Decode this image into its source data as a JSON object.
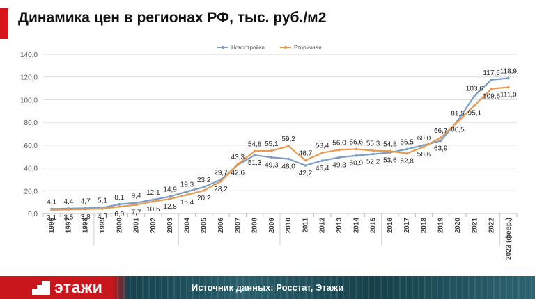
{
  "title": "Динамика цен в регионах РФ, тыс. руб./м2",
  "colors": {
    "accent": "#d7141a",
    "series_new": "#7b9ec9",
    "series_secondary": "#e89a52"
  },
  "chart_data": {
    "type": "line",
    "title": "",
    "xlabel": "",
    "ylabel": "",
    "ylim": [
      0,
      140
    ],
    "yticks": [
      "0,0",
      "20,0",
      "40,0",
      "60,0",
      "80,0",
      "100,0",
      "120,0",
      "140,0"
    ],
    "grid": true,
    "legend": "top-center",
    "categories": [
      "1996",
      "1997",
      "1998",
      "1999",
      "2000",
      "2001",
      "2002",
      "2003",
      "2004",
      "2005",
      "2006",
      "2007",
      "2008",
      "2009",
      "2010",
      "2011",
      "2012",
      "2013",
      "2014",
      "2015",
      "2016",
      "2017",
      "2018",
      "2019",
      "2020",
      "2021",
      "2022",
      "2023 (февр.)"
    ],
    "series": [
      {
        "name": "Новостройки",
        "color": "#7b9ec9",
        "values": [
          4.1,
          4.4,
          4.7,
          5.1,
          8.1,
          9.4,
          12.1,
          14.9,
          19.3,
          23.2,
          29.7,
          42.6,
          51.3,
          49.3,
          48.0,
          42.2,
          46.4,
          49.3,
          50.9,
          52.2,
          53.6,
          56.5,
          60.0,
          63.9,
          81.5,
          103.6,
          117.5,
          118.9
        ],
        "labels": [
          "4,1",
          "4,4",
          "4,7",
          "5,1",
          "8,1",
          "9,4",
          "12,1",
          "14,9",
          "19,3",
          "23,2",
          "29,7",
          "42,6",
          "51,3",
          "49,3",
          "48,0",
          "42,2",
          "46,4",
          "49,3",
          "50,9",
          "52,2",
          "53,6",
          "56,5",
          "60,0",
          "63,9",
          "81,5",
          "103,6",
          "117,5",
          "118,9"
        ]
      },
      {
        "name": "Вторичная",
        "color": "#e89a52",
        "values": [
          3.1,
          3.5,
          3.8,
          4.3,
          6.0,
          7.7,
          10.5,
          12.8,
          16.4,
          20.2,
          28.2,
          43.3,
          54.8,
          55.1,
          59.2,
          46.7,
          53.4,
          56.0,
          56.6,
          55.3,
          54.8,
          52.8,
          58.6,
          66.7,
          80.5,
          95.1,
          109.6,
          111.0
        ],
        "labels": [
          "3,1",
          "3,5",
          "3,8",
          "4,3",
          "6,0",
          "7,7",
          "10,5",
          "12,8",
          "16,4",
          "20,2",
          "28,2",
          "43,3",
          "54,8",
          "55,1",
          "59,2",
          "46,7",
          "53,4",
          "56,0",
          "56,6",
          "55,3",
          "54,8",
          "52,8",
          "58,6",
          "66,7",
          "80,5",
          "95,1",
          "109,6",
          "111,0"
        ]
      }
    ]
  },
  "footer": {
    "logo_text": "этажи",
    "source": "Источник данных: Росстат, Этажи"
  }
}
